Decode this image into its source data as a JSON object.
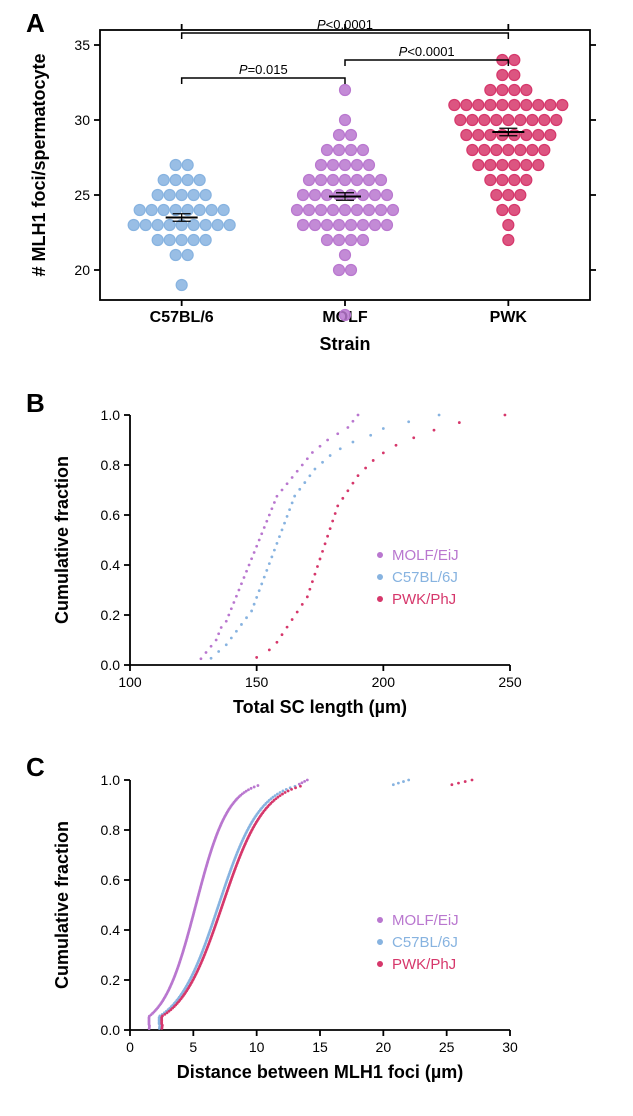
{
  "panelA": {
    "label": "A",
    "type": "scatter-strip",
    "ylabel": "# MLH1 foci/spermatocyte",
    "xlabel": "Strain",
    "ylim": [
      18,
      36
    ],
    "yticks": [
      20,
      25,
      30,
      35
    ],
    "label_fontsize": 18,
    "tick_fontsize": 14,
    "categories": [
      "C57BL/6",
      "MOLF",
      "PWK"
    ],
    "category_colors": [
      "#87b3e0",
      "#b977cf",
      "#d6376b"
    ],
    "means": [
      23.5,
      24.9,
      29.2
    ],
    "significance": [
      {
        "from": 0,
        "to": 1,
        "y": 32.8,
        "text": "P=0.015"
      },
      {
        "from": 1,
        "to": 2,
        "y": 34.0,
        "text": "P<0.0001"
      },
      {
        "from": 0,
        "to": 2,
        "y": 35.8,
        "text": "P<0.0001"
      }
    ],
    "points": {
      "C57BL/6": [
        19,
        21,
        21,
        22,
        22,
        22,
        22,
        22,
        23,
        23,
        23,
        23,
        23,
        23,
        23,
        23,
        23,
        24,
        24,
        24,
        24,
        24,
        24,
        24,
        24,
        25,
        25,
        25,
        25,
        25,
        26,
        26,
        26,
        26,
        27,
        27
      ],
      "MOLF": [
        17,
        20,
        20,
        21,
        22,
        22,
        22,
        22,
        23,
        23,
        23,
        23,
        23,
        23,
        23,
        23,
        24,
        24,
        24,
        24,
        24,
        24,
        24,
        24,
        24,
        25,
        25,
        25,
        25,
        25,
        25,
        25,
        25,
        26,
        26,
        26,
        26,
        26,
        26,
        26,
        27,
        27,
        27,
        27,
        27,
        28,
        28,
        28,
        28,
        29,
        29,
        30,
        32
      ],
      "PWK": [
        22,
        23,
        24,
        24,
        25,
        25,
        25,
        26,
        26,
        26,
        26,
        27,
        27,
        27,
        27,
        27,
        27,
        28,
        28,
        28,
        28,
        28,
        28,
        28,
        29,
        29,
        29,
        29,
        29,
        29,
        29,
        29,
        30,
        30,
        30,
        30,
        30,
        30,
        30,
        30,
        30,
        31,
        31,
        31,
        31,
        31,
        31,
        31,
        31,
        31,
        31,
        32,
        32,
        32,
        32,
        33,
        33,
        34,
        34
      ]
    }
  },
  "panelB": {
    "label": "B",
    "type": "cumulative-scatter",
    "xlabel": "Total SC length (µm)",
    "ylabel": "Cumulative fraction",
    "xlim": [
      100,
      250
    ],
    "xticks": [
      100,
      150,
      200,
      250
    ],
    "ylim": [
      0,
      1
    ],
    "yticks": [
      0.0,
      0.2,
      0.4,
      0.6,
      0.8,
      1.0
    ],
    "label_fontsize": 18,
    "tick_fontsize": 14,
    "legend": [
      {
        "label": "MOLF/EiJ",
        "color": "#b977cf"
      },
      {
        "label": "C57BL/6J",
        "color": "#87b3e0"
      },
      {
        "label": "PWK/PhJ",
        "color": "#d6376b"
      }
    ],
    "series": {
      "MOLF/EiJ": [
        128,
        130,
        132,
        134,
        135,
        136,
        138,
        139,
        140,
        141,
        142,
        143,
        144,
        145,
        146,
        147,
        148,
        149,
        150,
        151,
        152,
        153,
        154,
        155,
        156,
        157,
        158,
        160,
        162,
        164,
        166,
        168,
        170,
        172,
        175,
        178,
        182,
        186,
        188,
        190
      ],
      "C57BL/6J": [
        132,
        135,
        138,
        140,
        142,
        144,
        146,
        148,
        149,
        150,
        151,
        152,
        153,
        154,
        155,
        156,
        157,
        158,
        159,
        160,
        161,
        162,
        163,
        164,
        165,
        167,
        169,
        171,
        173,
        176,
        179,
        183,
        188,
        195,
        200,
        210,
        222
      ],
      "PWK/PhJ": [
        150,
        155,
        158,
        160,
        162,
        164,
        166,
        168,
        170,
        171,
        172,
        173,
        174,
        175,
        176,
        177,
        178,
        179,
        180,
        181,
        182,
        184,
        186,
        188,
        190,
        193,
        196,
        200,
        205,
        212,
        220,
        230,
        248
      ]
    }
  },
  "panelC": {
    "label": "C",
    "type": "cumulative-scatter",
    "xlabel": "Distance between MLH1 foci (µm)",
    "ylabel": "Cumulative fraction",
    "xlim": [
      0,
      30
    ],
    "xticks": [
      0,
      5,
      10,
      15,
      20,
      25,
      30
    ],
    "ylim": [
      0,
      1
    ],
    "yticks": [
      0.0,
      0.2,
      0.4,
      0.6,
      0.8,
      1.0
    ],
    "label_fontsize": 18,
    "tick_fontsize": 14,
    "legend": [
      {
        "label": "MOLF/EiJ",
        "color": "#b977cf"
      },
      {
        "label": "C57BL/6J",
        "color": "#87b3e0"
      },
      {
        "label": "PWK/PhJ",
        "color": "#d6376b"
      }
    ],
    "series": {
      "MOLF/EiJ": {
        "n": 180,
        "start": 1.5,
        "mid": 5.2,
        "end": 14
      },
      "C57BL/6J": {
        "n": 160,
        "start": 2.3,
        "mid": 7.0,
        "end": 22
      },
      "PWK/PhJ": {
        "n": 160,
        "start": 2.5,
        "mid": 7.3,
        "end": 27
      }
    }
  },
  "style": {
    "background": "#ffffff",
    "axis_color": "#000000",
    "marker_radius_A": 5.5,
    "marker_stroke_A": 1.2,
    "marker_radius_BC": 1.4,
    "axis_width": 1.8,
    "tick_len": 6
  }
}
